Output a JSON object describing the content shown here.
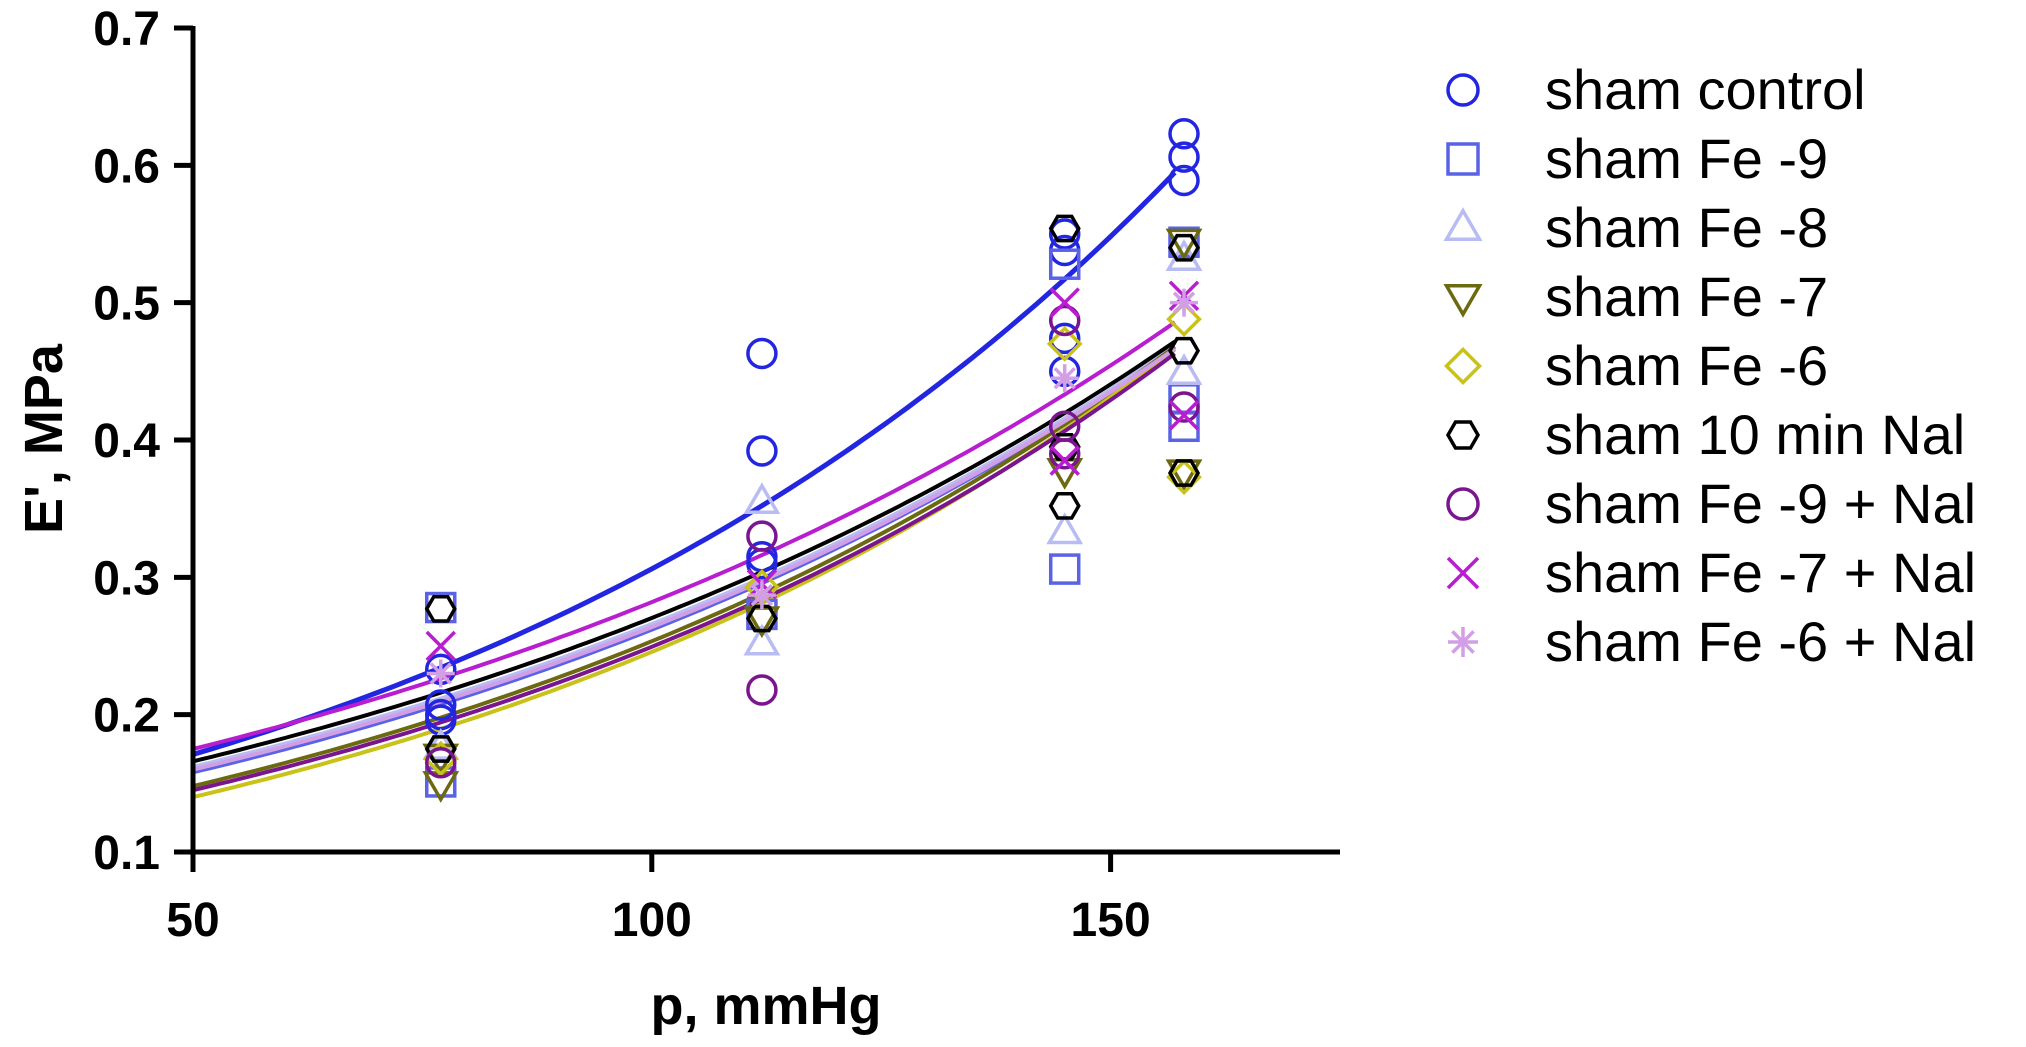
{
  "chart_data": {
    "type": "scatter",
    "xlabel": "p, mmHg",
    "ylabel": "E', MPa",
    "xlim": [
      50,
      175
    ],
    "ylim": [
      0.1,
      0.7
    ],
    "x_ticks": [
      50,
      100,
      150
    ],
    "y_ticks": [
      0.1,
      0.2,
      0.3,
      0.4,
      0.5,
      0.6,
      0.7
    ],
    "y_tick_labels": [
      "0.1",
      "0.2",
      "0.3",
      "0.4",
      "0.5",
      "0.6",
      "0.7"
    ],
    "legend_position": "right",
    "series": [
      {
        "name": "sham control",
        "marker": "circle",
        "color": "#2326e0",
        "fit": {
          "x0": 50,
          "x1": 157,
          "a": 0.171,
          "b": 0.01165
        },
        "points": [
          [
            77,
            0.233
          ],
          [
            77,
            0.207
          ],
          [
            77,
            0.2
          ],
          [
            77,
            0.196
          ],
          [
            112,
            0.463
          ],
          [
            112,
            0.392
          ],
          [
            112,
            0.315
          ],
          [
            112,
            0.31
          ],
          [
            145,
            0.55
          ],
          [
            145,
            0.538
          ],
          [
            145,
            0.474
          ],
          [
            145,
            0.45
          ],
          [
            158,
            0.623
          ],
          [
            158,
            0.606
          ],
          [
            158,
            0.589
          ]
        ]
      },
      {
        "name": "sham Fe -9",
        "marker": "square",
        "color": "#5a62e6",
        "fit": {
          "x0": 50,
          "x1": 157,
          "a": 0.158,
          "b": 0.01011
        },
        "points": [
          [
            77,
            0.278
          ],
          [
            77,
            0.151
          ],
          [
            112,
            0.273
          ],
          [
            145,
            0.528
          ],
          [
            145,
            0.306
          ],
          [
            158,
            0.544
          ],
          [
            158,
            0.43
          ],
          [
            158,
            0.41
          ]
        ]
      },
      {
        "name": "sham Fe -8",
        "marker": "triangle-up",
        "color": "#b8bcf2",
        "fit": {
          "x0": 50,
          "x1": 157,
          "a": 0.162,
          "b": 0.00992
        },
        "points": [
          [
            77,
            0.176
          ],
          [
            112,
            0.355
          ],
          [
            112,
            0.252
          ],
          [
            145,
            0.333
          ],
          [
            158,
            0.532
          ],
          [
            158,
            0.449
          ]
        ]
      },
      {
        "name": "sham Fe -7",
        "marker": "triangle-down",
        "color": "#6b6a10",
        "fit": {
          "x0": 50,
          "x1": 157,
          "a": 0.148,
          "b": 0.01076
        },
        "points": [
          [
            77,
            0.17
          ],
          [
            77,
            0.15
          ],
          [
            112,
            0.27
          ],
          [
            145,
            0.378
          ],
          [
            158,
            0.545
          ],
          [
            158,
            0.377
          ]
        ]
      },
      {
        "name": "sham Fe -6",
        "marker": "diamond",
        "color": "#c8c21a",
        "fit": {
          "x0": 50,
          "x1": 157,
          "a": 0.14,
          "b": 0.01125
        },
        "points": [
          [
            77,
            0.168
          ],
          [
            112,
            0.293
          ],
          [
            145,
            0.47
          ],
          [
            158,
            0.488
          ],
          [
            158,
            0.373
          ]
        ]
      },
      {
        "name": "sham 10 min Nal",
        "marker": "hexagon",
        "color": "#000000",
        "fit": {
          "x0": 50,
          "x1": 157,
          "a": 0.166,
          "b": 0.00976
        },
        "points": [
          [
            77,
            0.277
          ],
          [
            77,
            0.175
          ],
          [
            112,
            0.27
          ],
          [
            145,
            0.554
          ],
          [
            145,
            0.395
          ],
          [
            145,
            0.352
          ],
          [
            158,
            0.54
          ],
          [
            158,
            0.465
          ],
          [
            158,
            0.376
          ]
        ]
      },
      {
        "name": "sham Fe -9 + Nal",
        "marker": "circle",
        "color": "#7a158f",
        "fit": {
          "x0": 50,
          "x1": 157,
          "a": 0.145,
          "b": 0.01085
        },
        "points": [
          [
            77,
            0.165
          ],
          [
            112,
            0.218
          ],
          [
            112,
            0.33
          ],
          [
            145,
            0.487
          ],
          [
            145,
            0.41
          ],
          [
            145,
            0.39
          ],
          [
            158,
            0.424
          ]
        ]
      },
      {
        "name": "sham Fe -7 + Nal",
        "marker": "x",
        "color": "#b81ed0",
        "fit": {
          "x0": 50,
          "x1": 157,
          "a": 0.175,
          "b": 0.00954
        },
        "points": [
          [
            77,
            0.25
          ],
          [
            112,
            0.295
          ],
          [
            145,
            0.5
          ],
          [
            145,
            0.385
          ],
          [
            158,
            0.505
          ],
          [
            158,
            0.418
          ]
        ]
      },
      {
        "name": "sham Fe -6 + Nal",
        "marker": "asterisk",
        "color": "#d29ee6",
        "fit": {
          "x0": 50,
          "x1": 157,
          "a": 0.16,
          "b": 0.01
        },
        "points": [
          [
            77,
            0.23
          ],
          [
            112,
            0.287
          ],
          [
            145,
            0.445
          ],
          [
            158,
            0.5
          ]
        ]
      }
    ]
  }
}
